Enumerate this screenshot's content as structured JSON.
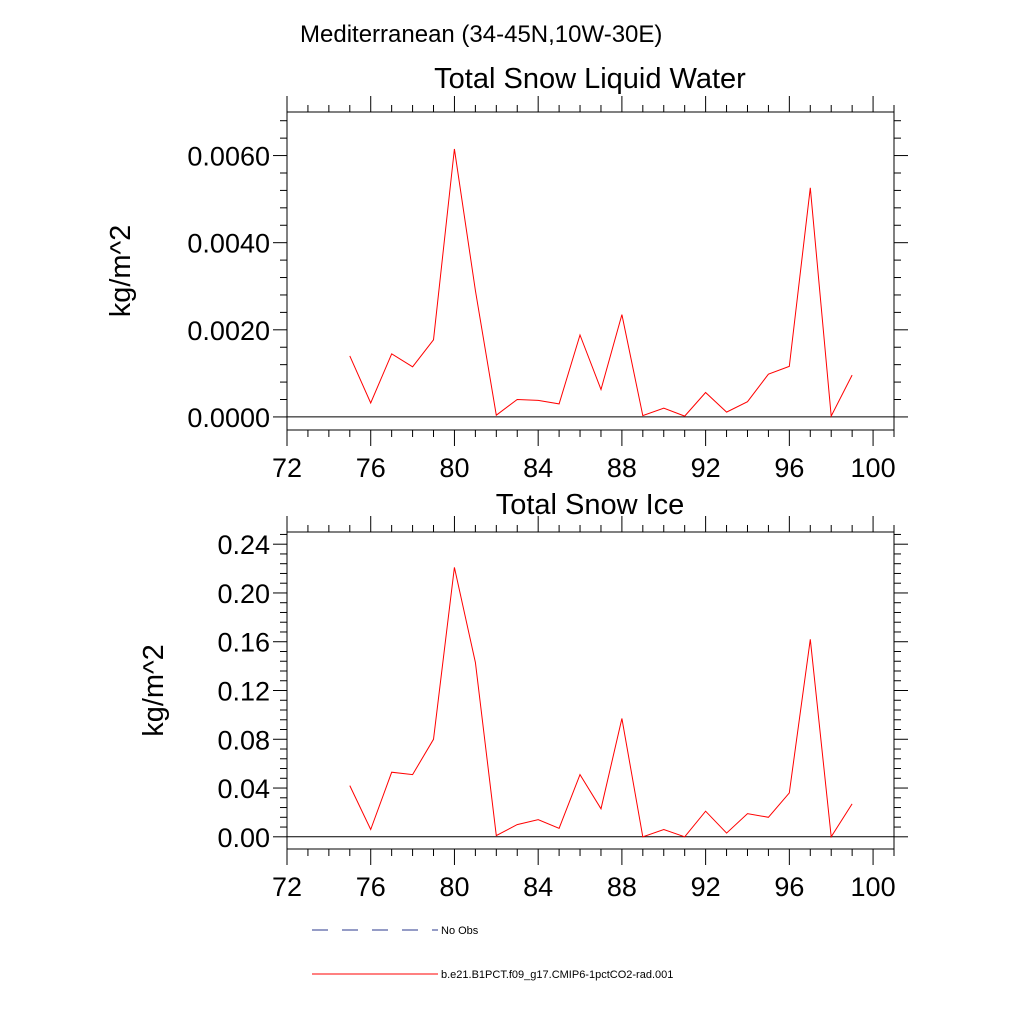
{
  "figure": {
    "supertitle": "Mediterranean (34-45N,10W-30E)"
  },
  "legend": {
    "entries": [
      {
        "label": "No Obs",
        "style": "dashed",
        "color": "#2b3a8c"
      },
      {
        "label": "b.e21.B1PCT.f09_g17.CMIP6-1pctCO2-rad.001",
        "style": "solid",
        "color": "#ff0000"
      }
    ]
  },
  "chart_data": [
    {
      "type": "line",
      "title": "Total Snow Liquid Water",
      "xlabel": "",
      "ylabel": "kg/m^2",
      "xlim": [
        72,
        101
      ],
      "ylim": [
        -0.0003,
        0.007
      ],
      "xticks": [
        72,
        76,
        80,
        84,
        88,
        92,
        96,
        100
      ],
      "xtick_labels": [
        "72",
        "76",
        "80",
        "84",
        "88",
        "92",
        "96",
        "100"
      ],
      "yticks": [
        0,
        0.002,
        0.004,
        0.006
      ],
      "ytick_labels": [
        "0.0000",
        "0.0020",
        "0.0040",
        "0.0060"
      ],
      "reference_line": 0,
      "grid": false,
      "series": [
        {
          "name": "b.e21.B1PCT.f09_g17.CMIP6-1pctCO2-rad.001",
          "color": "#ff0000",
          "x": [
            75,
            76,
            77,
            78,
            79,
            80,
            81,
            82,
            83,
            84,
            85,
            86,
            87,
            88,
            89,
            90,
            91,
            92,
            93,
            94,
            95,
            96,
            97,
            98,
            99
          ],
          "y": [
            0.0014,
            0.00032,
            0.00145,
            0.00115,
            0.00177,
            0.00615,
            0.0029,
            4e-05,
            0.0004,
            0.00038,
            0.0003,
            0.00188,
            0.00063,
            0.00235,
            3e-05,
            0.0002,
            2e-05,
            0.00056,
            0.00011,
            0.00035,
            0.00098,
            0.00116,
            0.00526,
            2e-05,
            0.00096
          ]
        }
      ]
    },
    {
      "type": "line",
      "title": "Total Snow Ice",
      "xlabel": "",
      "ylabel": "kg/m^2",
      "xlim": [
        72,
        101
      ],
      "ylim": [
        -0.01,
        0.25
      ],
      "xticks": [
        72,
        76,
        80,
        84,
        88,
        92,
        96,
        100
      ],
      "xtick_labels": [
        "72",
        "76",
        "80",
        "84",
        "88",
        "92",
        "96",
        "100"
      ],
      "yticks": [
        0,
        0.04,
        0.08,
        0.12,
        0.16,
        0.2,
        0.24
      ],
      "ytick_labels": [
        "0.00",
        "0.04",
        "0.08",
        "0.12",
        "0.16",
        "0.20",
        "0.24"
      ],
      "reference_line": 0,
      "grid": false,
      "series": [
        {
          "name": "b.e21.B1PCT.f09_g17.CMIP6-1pctCO2-rad.001",
          "color": "#ff0000",
          "x": [
            75,
            76,
            77,
            78,
            79,
            80,
            81,
            82,
            83,
            84,
            85,
            86,
            87,
            88,
            89,
            90,
            91,
            92,
            93,
            94,
            95,
            96,
            97,
            98,
            99
          ],
          "y": [
            0.042,
            0.006,
            0.053,
            0.051,
            0.08,
            0.221,
            0.143,
            0.001,
            0.01,
            0.014,
            0.007,
            0.051,
            0.023,
            0.097,
            0.0,
            0.006,
            0.0,
            0.021,
            0.003,
            0.019,
            0.016,
            0.036,
            0.162,
            0.0,
            0.027
          ]
        }
      ]
    }
  ]
}
